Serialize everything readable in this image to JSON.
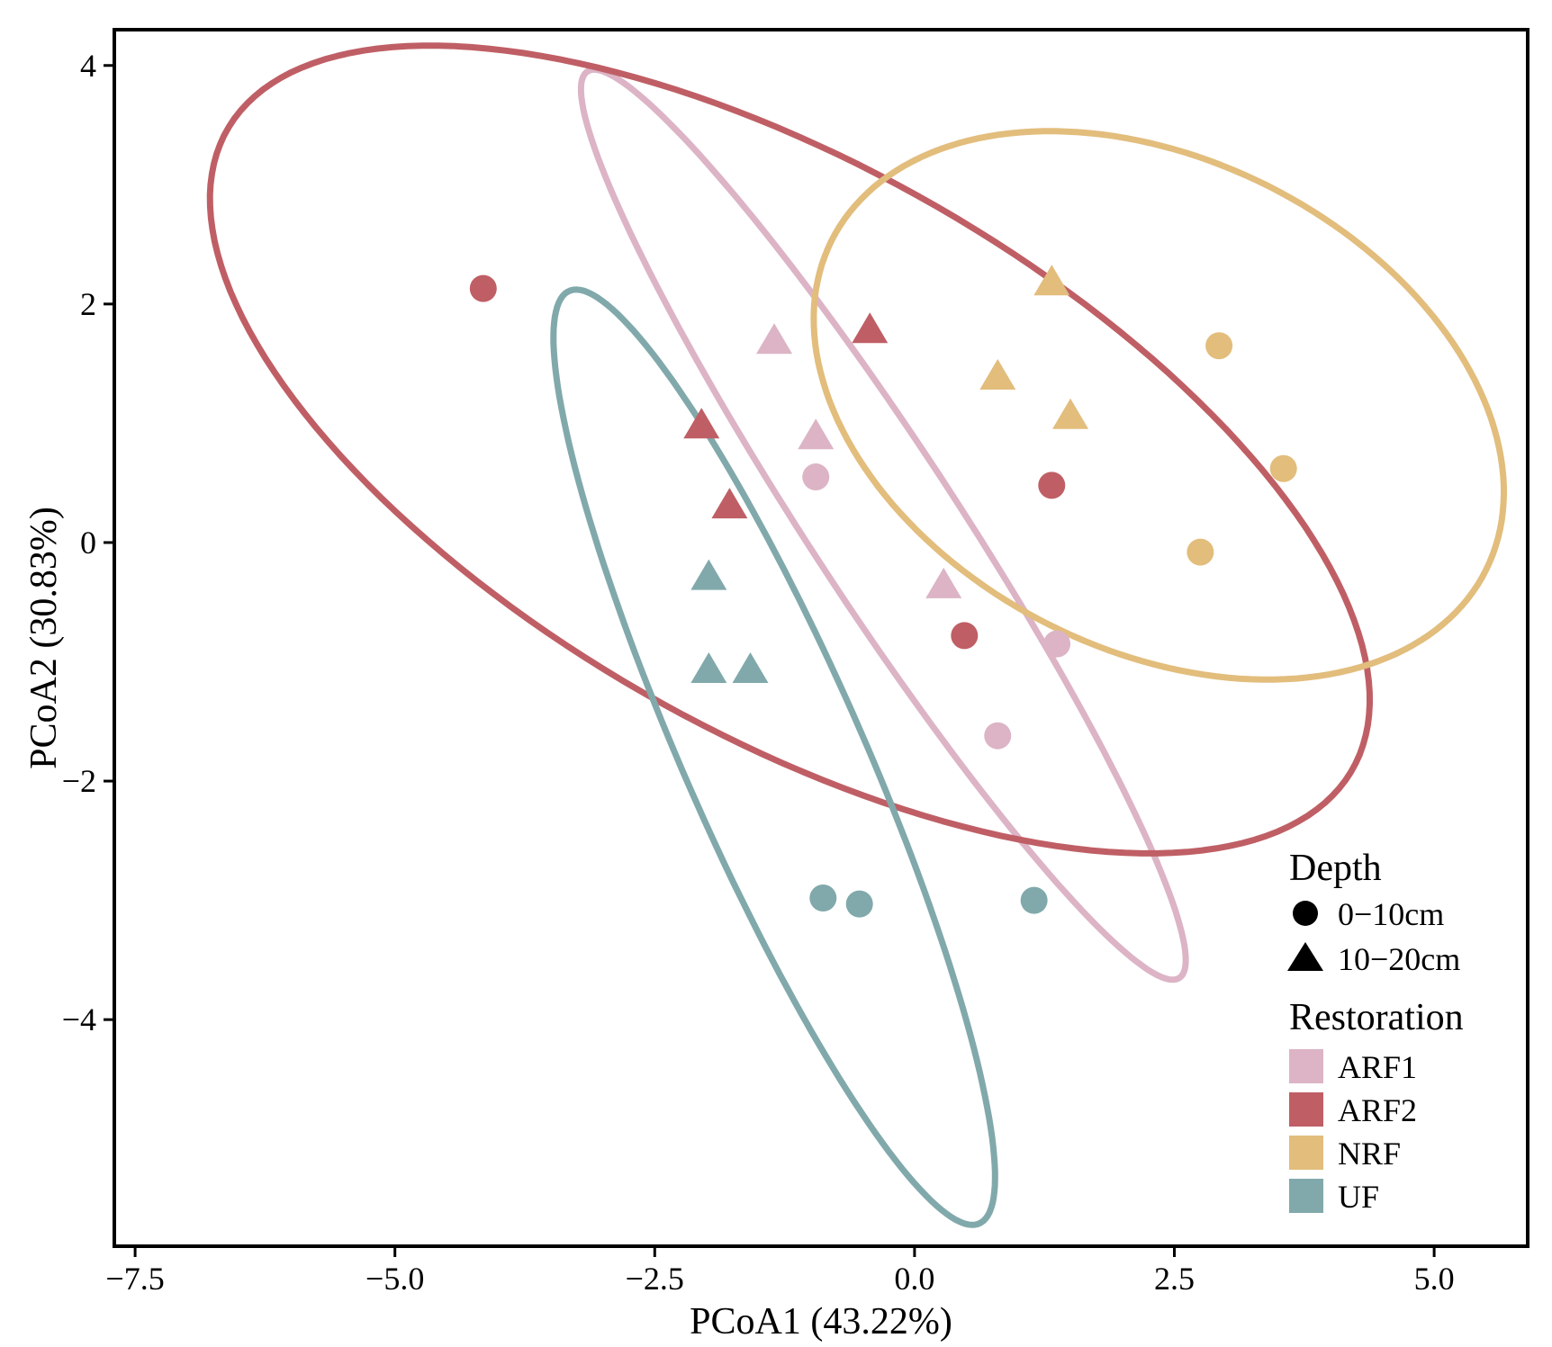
{
  "chart_data": {
    "type": "scatter",
    "title": "",
    "xlabel": "PCoA1 (43.22%)",
    "ylabel": "PCoA2 (30.83%)",
    "xlim": [
      -7.7,
      5.9
    ],
    "ylim": [
      -5.9,
      4.3
    ],
    "xticks": [
      -7.5,
      -5.0,
      -2.5,
      0.0,
      2.5,
      5.0
    ],
    "xtick_labels": [
      "−7.5",
      "−5.0",
      "−2.5",
      "0.0",
      "2.5",
      "5.0"
    ],
    "yticks": [
      4,
      2,
      0,
      -2,
      -4
    ],
    "ytick_labels": [
      "4",
      "2",
      "0",
      "−2",
      "−4"
    ],
    "grid": false,
    "legend": {
      "position": "right",
      "depth_title": "Depth",
      "depth_items": [
        {
          "label": "0−10cm",
          "shape": "circle"
        },
        {
          "label": "10−20cm",
          "shape": "triangle"
        }
      ],
      "restoration_title": "Restoration",
      "restoration_items": [
        {
          "label": "ARF1",
          "color": "#dcb4c6"
        },
        {
          "label": "ARF2",
          "color": "#bf5f65"
        },
        {
          "label": "NRF",
          "color": "#e2bd7c"
        },
        {
          "label": "UF",
          "color": "#81a9ab"
        }
      ]
    },
    "series": [
      {
        "name": "ARF1",
        "color": "#dcb4c6",
        "points": [
          {
            "x": -0.95,
            "y": 0.55,
            "shape": "circle"
          },
          {
            "x": 1.37,
            "y": -0.85,
            "shape": "circle"
          },
          {
            "x": 0.8,
            "y": -1.62,
            "shape": "circle"
          },
          {
            "x": -1.35,
            "y": 1.68,
            "shape": "triangle"
          },
          {
            "x": -0.95,
            "y": 0.88,
            "shape": "triangle"
          },
          {
            "x": 0.28,
            "y": -0.37,
            "shape": "triangle"
          }
        ],
        "ellipse": {
          "cx": -0.3,
          "cy": 0.15,
          "rx": 4.75,
          "ry": 0.68,
          "angle_deg": -53
        }
      },
      {
        "name": "ARF2",
        "color": "#bf5f65",
        "points": [
          {
            "x": -4.15,
            "y": 2.13,
            "shape": "circle"
          },
          {
            "x": 1.32,
            "y": 0.48,
            "shape": "circle"
          },
          {
            "x": 0.48,
            "y": -0.78,
            "shape": "circle"
          },
          {
            "x": -0.43,
            "y": 1.77,
            "shape": "triangle"
          },
          {
            "x": -2.05,
            "y": 0.97,
            "shape": "triangle"
          },
          {
            "x": -1.78,
            "y": 0.3,
            "shape": "triangle"
          }
        ],
        "ellipse": {
          "cx": -1.2,
          "cy": 0.78,
          "rx": 6.05,
          "ry": 2.45,
          "angle_deg": -25
        }
      },
      {
        "name": "NRF",
        "color": "#e2bd7c",
        "points": [
          {
            "x": 2.93,
            "y": 1.65,
            "shape": "circle"
          },
          {
            "x": 3.55,
            "y": 0.62,
            "shape": "circle"
          },
          {
            "x": 2.75,
            "y": -0.08,
            "shape": "circle"
          },
          {
            "x": 1.32,
            "y": 2.17,
            "shape": "triangle"
          },
          {
            "x": 0.8,
            "y": 1.38,
            "shape": "triangle"
          },
          {
            "x": 1.5,
            "y": 1.05,
            "shape": "triangle"
          }
        ],
        "ellipse": {
          "cx": 2.35,
          "cy": 1.15,
          "rx": 3.45,
          "ry": 2.1,
          "angle_deg": -20
        }
      },
      {
        "name": "UF",
        "color": "#81a9ab",
        "points": [
          {
            "x": -0.88,
            "y": -2.98,
            "shape": "circle"
          },
          {
            "x": -0.53,
            "y": -3.03,
            "shape": "circle"
          },
          {
            "x": 1.15,
            "y": -3.0,
            "shape": "circle"
          },
          {
            "x": -1.98,
            "y": -0.3,
            "shape": "triangle"
          },
          {
            "x": -1.98,
            "y": -1.08,
            "shape": "triangle"
          },
          {
            "x": -1.58,
            "y": -1.08,
            "shape": "triangle"
          }
        ],
        "ellipse": {
          "cx": -1.35,
          "cy": -1.8,
          "rx": 4.38,
          "ry": 0.84,
          "angle_deg": -63
        }
      }
    ]
  }
}
